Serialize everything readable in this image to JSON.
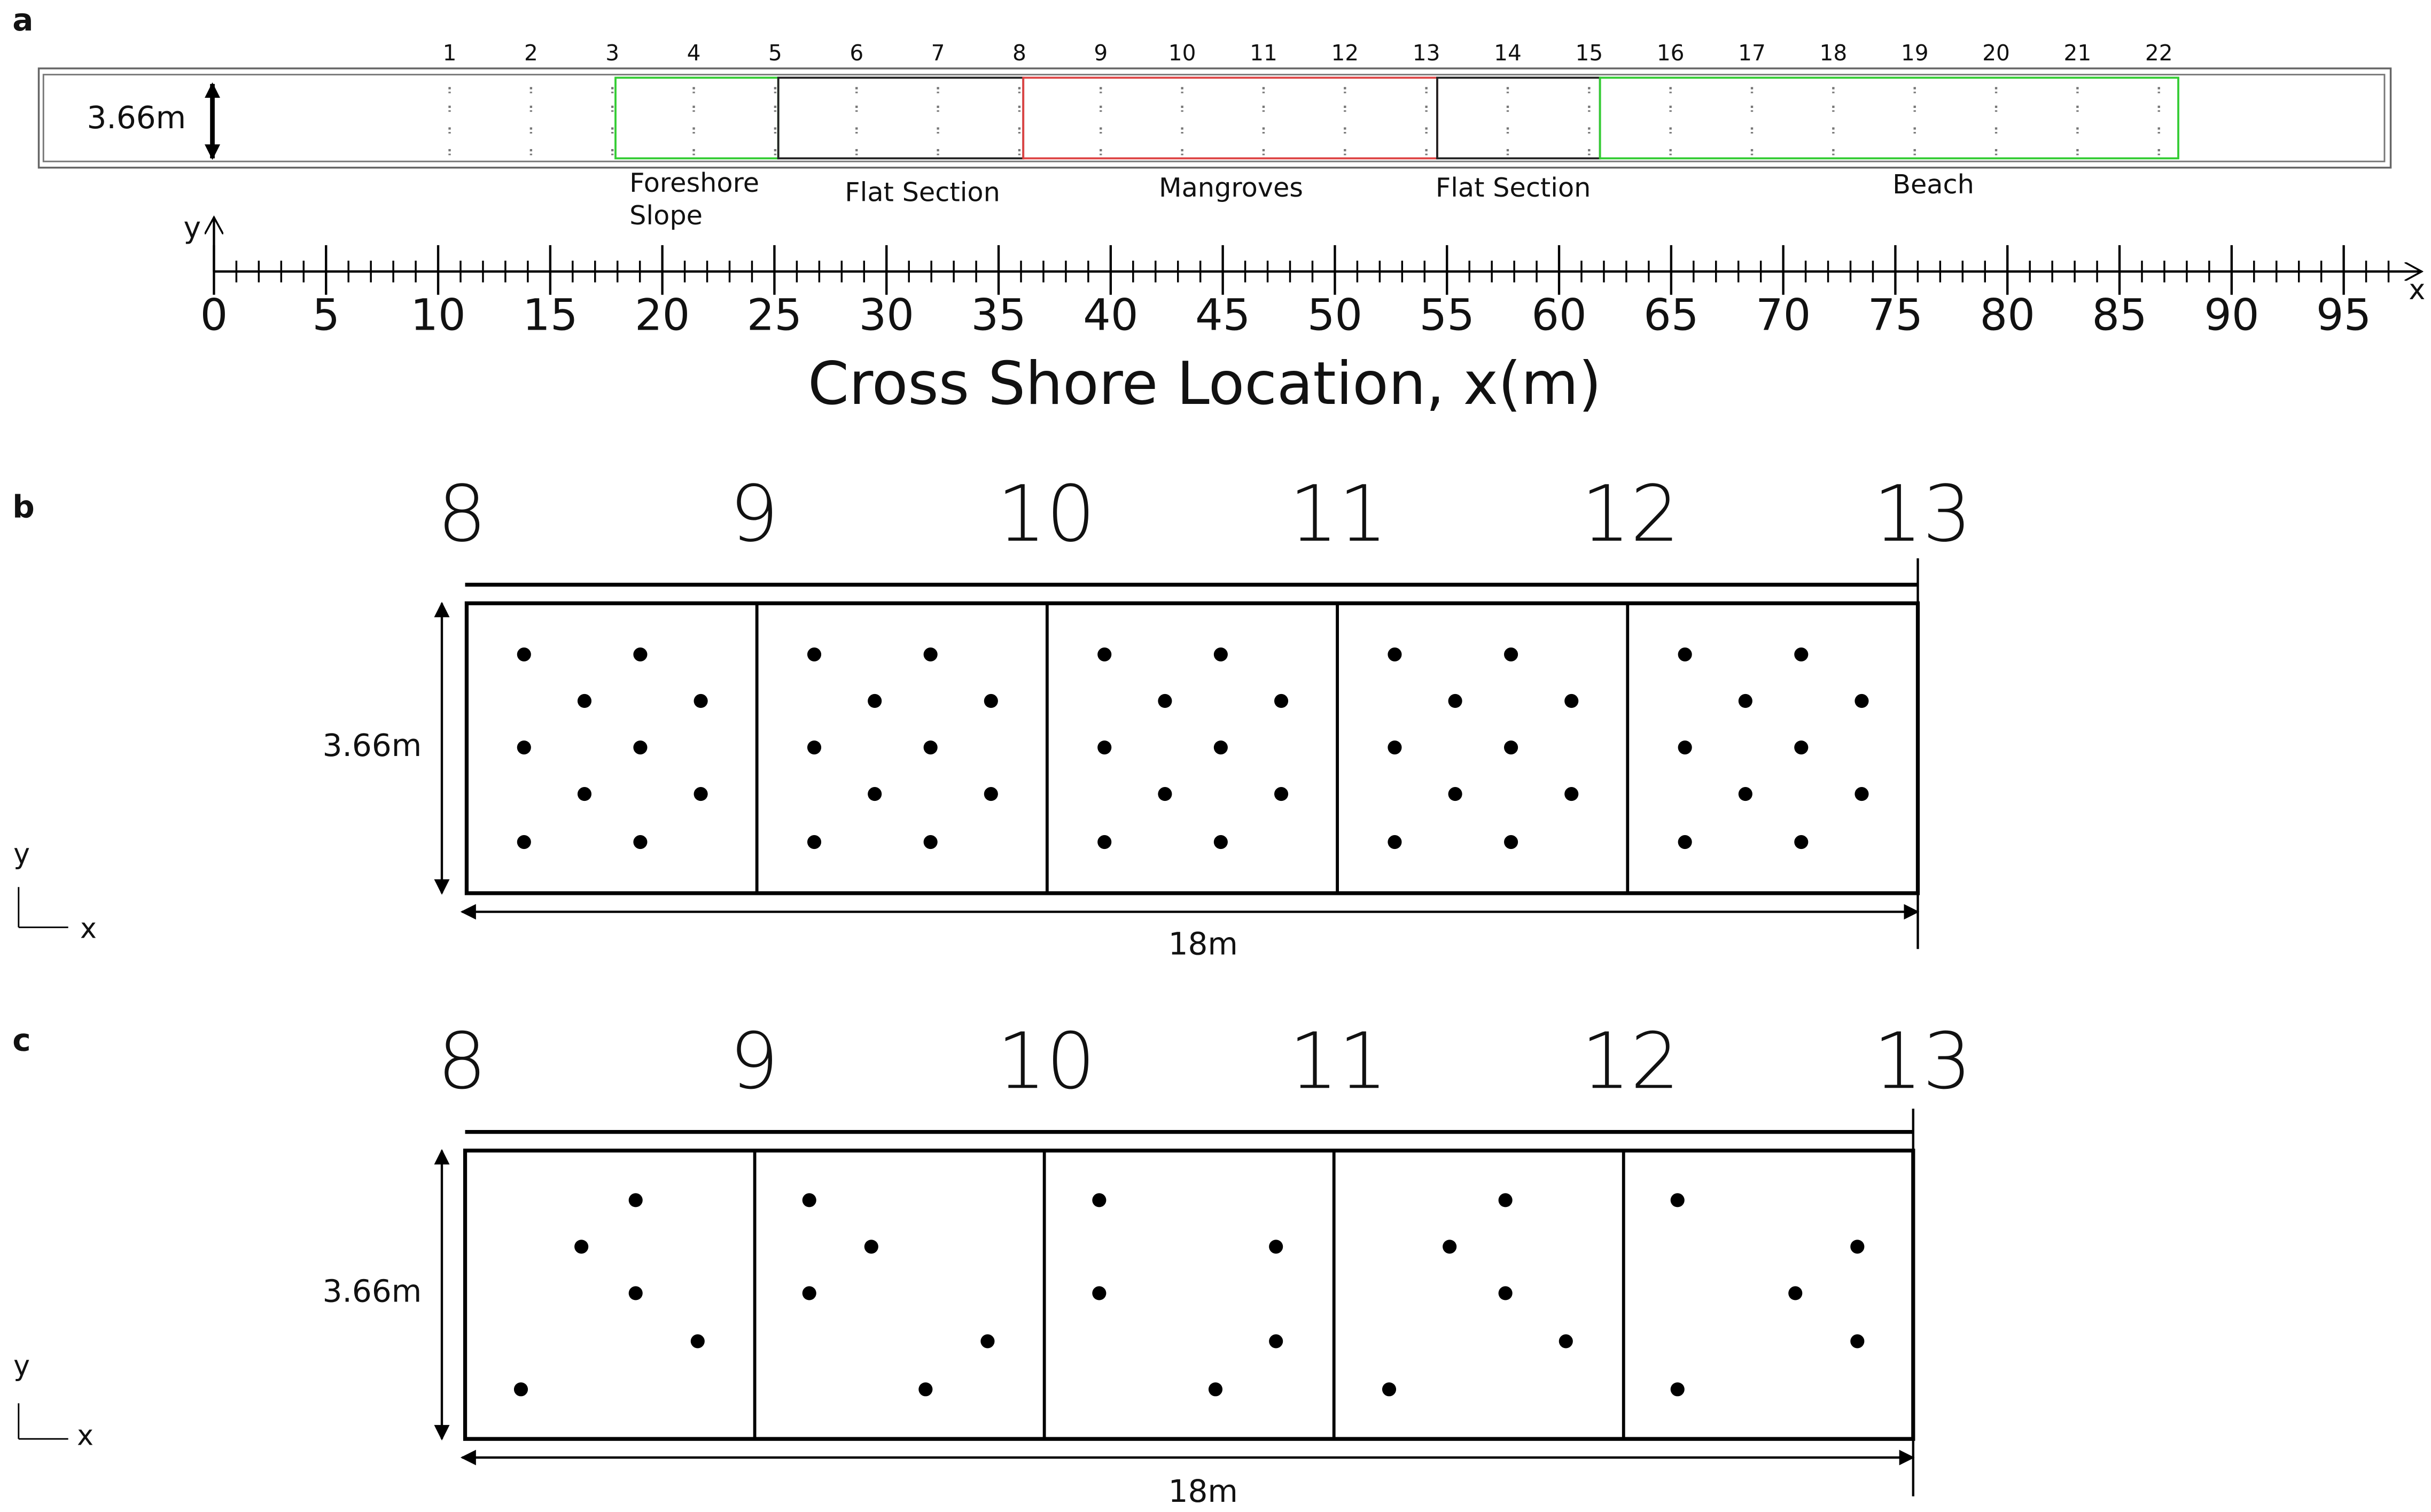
{
  "panels": [
    {
      "label": "a",
      "width_label": "3.66m",
      "stations": [
        "1",
        "2",
        "3",
        "4",
        "5",
        "6",
        "7",
        "8",
        "9",
        "10",
        "11",
        "12",
        "13",
        "14",
        "15",
        "16",
        "17",
        "18",
        "19",
        "20",
        "21",
        "22"
      ],
      "sections": [
        {
          "lines": [
            "Foreshore",
            "Slope"
          ]
        },
        {
          "lines": [
            "Flat Section"
          ]
        },
        {
          "lines": [
            "Mangroves"
          ]
        },
        {
          "lines": [
            "Flat Section"
          ]
        },
        {
          "lines": [
            "Beach"
          ]
        }
      ],
      "axis": {
        "ticks": [
          0,
          5,
          10,
          15,
          20,
          25,
          30,
          35,
          40,
          45,
          50,
          55,
          60,
          65,
          70,
          75,
          80,
          85,
          90,
          95
        ],
        "y_label": "y",
        "x_label": "x",
        "title": "Cross Shore Location, x(m)"
      }
    },
    {
      "label": "b",
      "stations": [
        "8",
        "9",
        "10",
        "11",
        "12",
        "13"
      ],
      "width_label": "3.66m",
      "length_label": "18m",
      "y_label": "y",
      "x_label": "x"
    },
    {
      "label": "c",
      "stations": [
        "8",
        "9",
        "10",
        "11",
        "12",
        "13"
      ],
      "width_label": "3.66m",
      "length_label": "18m",
      "y_label": "y",
      "x_label": "x"
    }
  ]
}
